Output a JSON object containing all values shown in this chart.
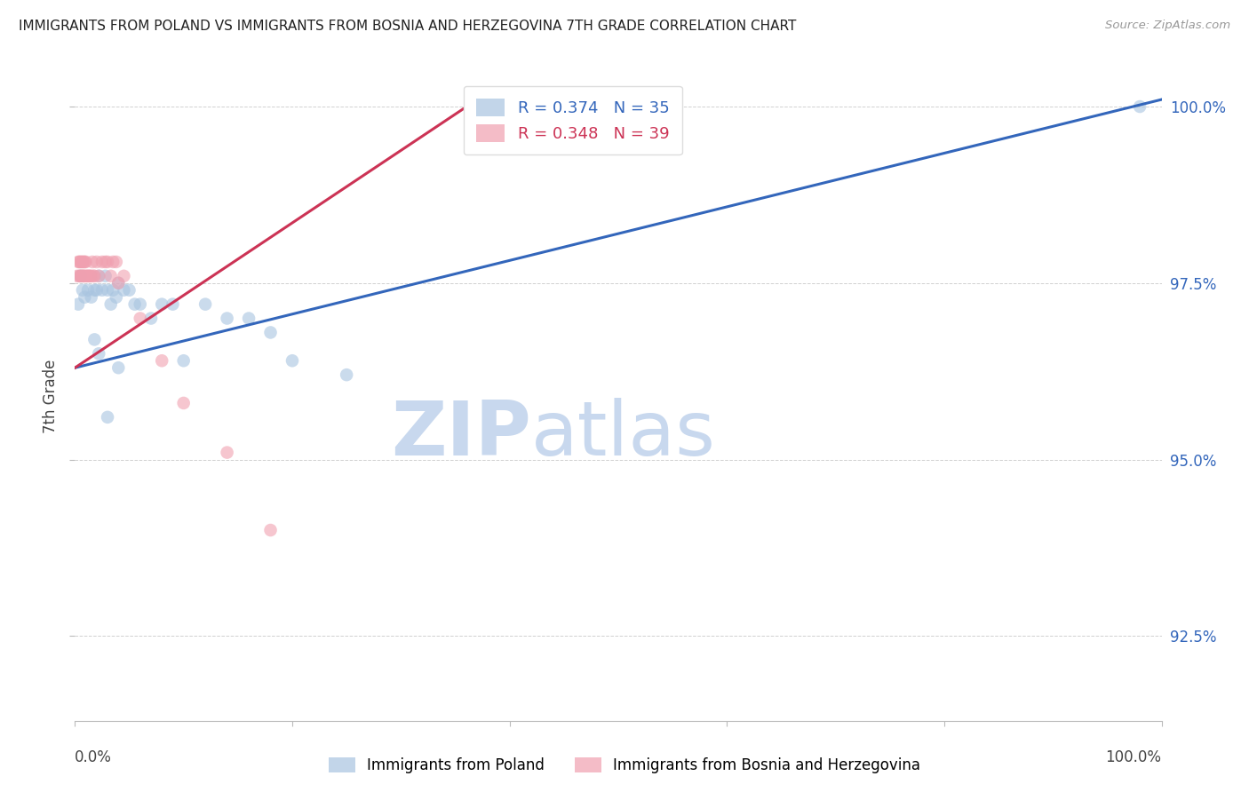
{
  "title": "IMMIGRANTS FROM POLAND VS IMMIGRANTS FROM BOSNIA AND HERZEGOVINA 7TH GRADE CORRELATION CHART",
  "source": "Source: ZipAtlas.com",
  "ylabel": "7th Grade",
  "right_ytick_labels": [
    "100.0%",
    "97.5%",
    "95.0%",
    "92.5%"
  ],
  "right_ytick_values": [
    1.0,
    0.975,
    0.95,
    0.925
  ],
  "watermark_zip": "ZIP",
  "watermark_atlas": "atlas",
  "blue_color": "#a8c4e0",
  "pink_color": "#f0a0b0",
  "line_blue": "#3366bb",
  "line_pink": "#cc3355",
  "blue_scatter_x": [
    0.003,
    0.005,
    0.007,
    0.009,
    0.012,
    0.015,
    0.018,
    0.02,
    0.022,
    0.025,
    0.028,
    0.03,
    0.033,
    0.035,
    0.038,
    0.04,
    0.045,
    0.05,
    0.055,
    0.06,
    0.07,
    0.08,
    0.09,
    0.1,
    0.12,
    0.14,
    0.16,
    0.18,
    0.2,
    0.25,
    0.018,
    0.022,
    0.03,
    0.04,
    0.98
  ],
  "blue_scatter_y": [
    0.972,
    0.976,
    0.974,
    0.973,
    0.974,
    0.973,
    0.974,
    0.974,
    0.976,
    0.974,
    0.976,
    0.974,
    0.972,
    0.974,
    0.973,
    0.975,
    0.974,
    0.974,
    0.972,
    0.972,
    0.97,
    0.972,
    0.972,
    0.964,
    0.972,
    0.97,
    0.97,
    0.968,
    0.964,
    0.962,
    0.967,
    0.965,
    0.956,
    0.963,
    1.0
  ],
  "pink_scatter_x": [
    0.002,
    0.003,
    0.004,
    0.004,
    0.005,
    0.005,
    0.006,
    0.006,
    0.007,
    0.007,
    0.008,
    0.008,
    0.008,
    0.009,
    0.01,
    0.01,
    0.011,
    0.012,
    0.013,
    0.014,
    0.015,
    0.016,
    0.017,
    0.018,
    0.02,
    0.022,
    0.025,
    0.028,
    0.03,
    0.033,
    0.035,
    0.038,
    0.04,
    0.045,
    0.06,
    0.08,
    0.1,
    0.14,
    0.18
  ],
  "pink_scatter_y": [
    0.976,
    0.978,
    0.976,
    0.978,
    0.976,
    0.978,
    0.976,
    0.978,
    0.976,
    0.978,
    0.976,
    0.978,
    0.976,
    0.978,
    0.976,
    0.978,
    0.976,
    0.976,
    0.976,
    0.976,
    0.976,
    0.978,
    0.976,
    0.976,
    0.978,
    0.976,
    0.978,
    0.978,
    0.978,
    0.976,
    0.978,
    0.978,
    0.975,
    0.976,
    0.97,
    0.964,
    0.958,
    0.951,
    0.94
  ],
  "xlim": [
    0.0,
    1.0
  ],
  "ylim": [
    0.913,
    1.005
  ],
  "blue_line_x0": 0.0,
  "blue_line_x1": 1.0,
  "blue_line_y0": 0.963,
  "blue_line_y1": 1.001,
  "pink_line_x0": 0.0,
  "pink_line_x1": 0.38,
  "pink_line_y0": 0.963,
  "pink_line_y1": 1.002
}
